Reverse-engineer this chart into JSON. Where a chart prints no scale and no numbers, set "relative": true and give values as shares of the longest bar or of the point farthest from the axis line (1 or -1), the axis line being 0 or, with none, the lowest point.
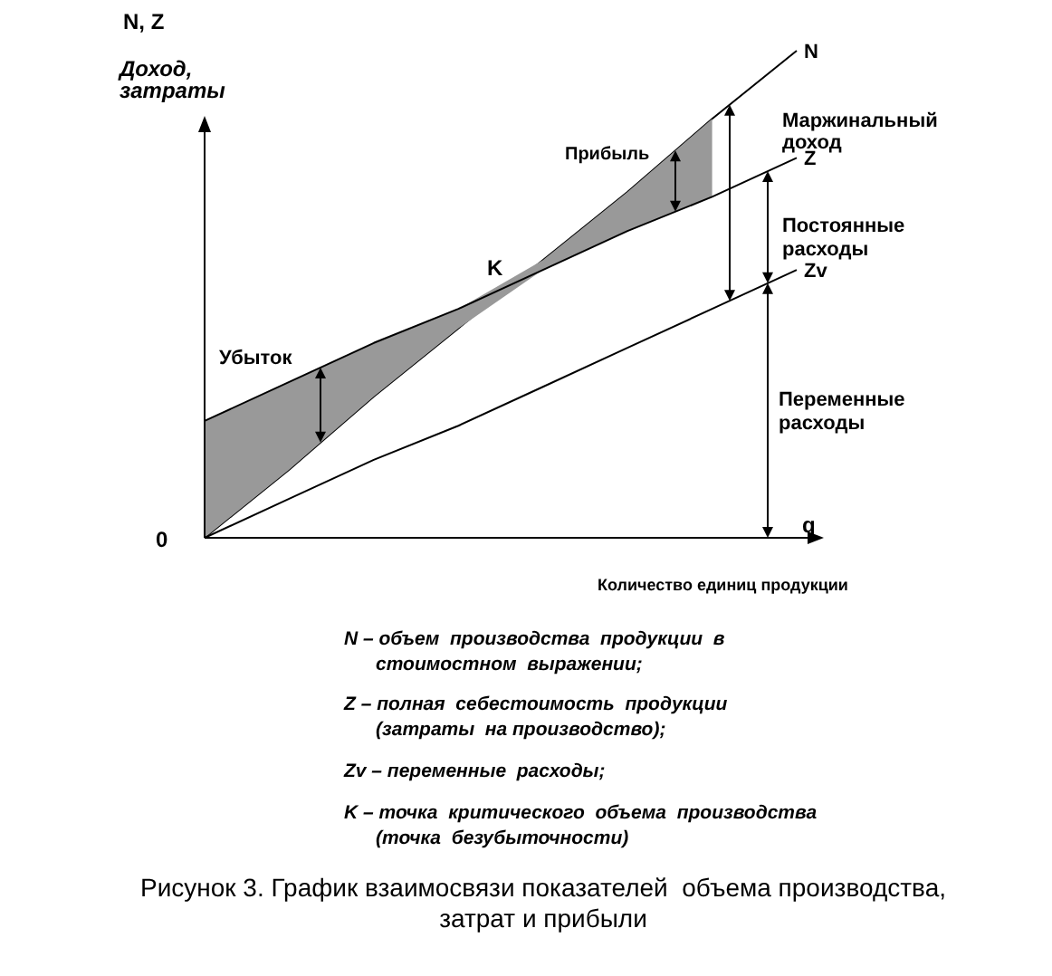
{
  "chart_data": {
    "type": "line",
    "relative": true,
    "title": "Рисунок 3. График взаимосвязи показателей  объема производства,\nзатрат и прибыли",
    "ylabel": "N, Z",
    "xlabel": "q",
    "categories": [
      null,
      null,
      null,
      null,
      null,
      null,
      null,
      null
    ],
    "series": [
      {
        "name": "N",
        "color": "#000000",
        "values": [
          0,
          0.14,
          0.29,
          0.43,
          0.57,
          0.71,
          0.86,
          1
        ]
      },
      {
        "name": "Z",
        "color": "#000000",
        "values": [
          0.24,
          0.32,
          0.4,
          0.47,
          0.55,
          0.63,
          0.7,
          0.78
        ],
        "lower": [
          0,
          0.14,
          0.29,
          0.43,
          0.55,
          0.63,
          0.7,
          null
        ],
        "upper": [
          0.24,
          0.32,
          0.4,
          0.47,
          0.57,
          0.71,
          0.86,
          null
        ]
      },
      {
        "name": "Zv",
        "color": "#000000",
        "values": [
          0,
          0.08,
          0.16,
          0.23,
          0.31,
          0.39,
          0.47,
          0.55
        ]
      }
    ],
    "annotations": [
      "Доход,\nзатраты",
      "0",
      "Количество единиц продукции",
      "K",
      "Прибыль",
      "Убыток",
      "Маржинальный\nдоход",
      "Постоянные\nрасходы",
      "Переменные\nрасходы",
      "N – объем  производства  продукции  в\n      стоимостном  выражении;",
      "Z – полная  себестоимость  продукции\n      (затраты  на производство);",
      "Zv – переменные  расходы;",
      "K – точка  критического  объема  производства\n      (точка  безубыточности)"
    ],
    "marker": "none",
    "line_style": "solid"
  }
}
